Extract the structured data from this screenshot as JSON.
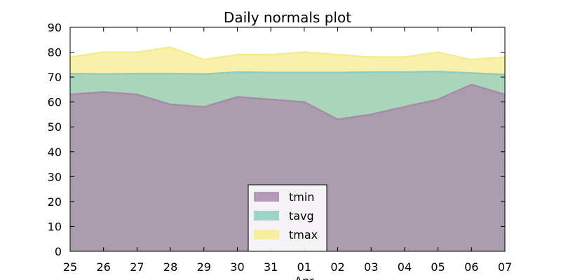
{
  "chart_data": {
    "type": "area",
    "title": "Daily normals plot",
    "xlabel": "",
    "ylabel": "",
    "ylim": [
      0,
      90
    ],
    "yticks": [
      0,
      10,
      20,
      30,
      40,
      50,
      60,
      70,
      80,
      90
    ],
    "x": [
      "25",
      "26",
      "27",
      "28",
      "29",
      "30",
      "31",
      "01",
      "02",
      "03",
      "04",
      "05",
      "06",
      "07"
    ],
    "x_month_label": {
      "index": 7,
      "text": "Apr"
    },
    "grid": false,
    "stacked": false,
    "legend_position": "lower-center",
    "series": [
      {
        "name": "tmax",
        "color": "#f6ec8f",
        "values": [
          78,
          80,
          80,
          82,
          77,
          79,
          79,
          80,
          79,
          78,
          78,
          80,
          77,
          78
        ]
      },
      {
        "name": "tavg",
        "color": "#91ccc0",
        "values": [
          71.4,
          71.2,
          71.4,
          71.4,
          71.2,
          72.0,
          71.8,
          71.8,
          71.8,
          72.0,
          72.0,
          72.2,
          71.6,
          71.0
        ]
      },
      {
        "name": "tmin",
        "color": "#a88aaa",
        "values": [
          63,
          64,
          63,
          59,
          58,
          62,
          61,
          60,
          53,
          55,
          58,
          61,
          67,
          63
        ]
      }
    ],
    "legend_order": [
      "tmin",
      "tavg",
      "tmax"
    ]
  }
}
